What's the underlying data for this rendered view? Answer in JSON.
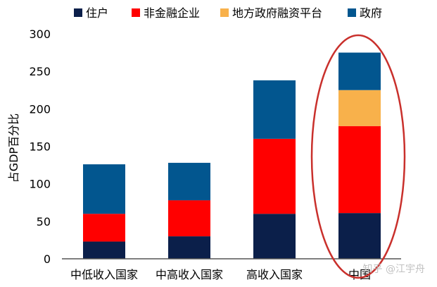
{
  "chart_data": {
    "type": "bar",
    "stacked": true,
    "title": "",
    "xlabel": "",
    "ylabel": "占GDP百分比",
    "ylim": [
      0,
      300
    ],
    "yticks": [
      0,
      50,
      100,
      150,
      200,
      250,
      300
    ],
    "grid": false,
    "legend_position": "top",
    "categories": [
      "中低收入国家",
      "中高收入国家",
      "高收入国家",
      "中国"
    ],
    "series": [
      {
        "name": "住户",
        "color": "#0b1f4a",
        "values": [
          23,
          30,
          60,
          61
        ]
      },
      {
        "name": "非金融企业",
        "color": "#ff0000",
        "values": [
          37,
          48,
          100,
          116
        ]
      },
      {
        "name": "地方政府融资平台",
        "color": "#f8b14b",
        "values": [
          0,
          0,
          0,
          48
        ]
      },
      {
        "name": "政府",
        "color": "#02568f",
        "values": [
          66,
          50,
          78,
          50
        ]
      }
    ],
    "annotations": [
      {
        "type": "ellipse",
        "target_category": "中国",
        "color": "#c9302c"
      }
    ]
  },
  "watermark": "知乎 @江宇舟"
}
